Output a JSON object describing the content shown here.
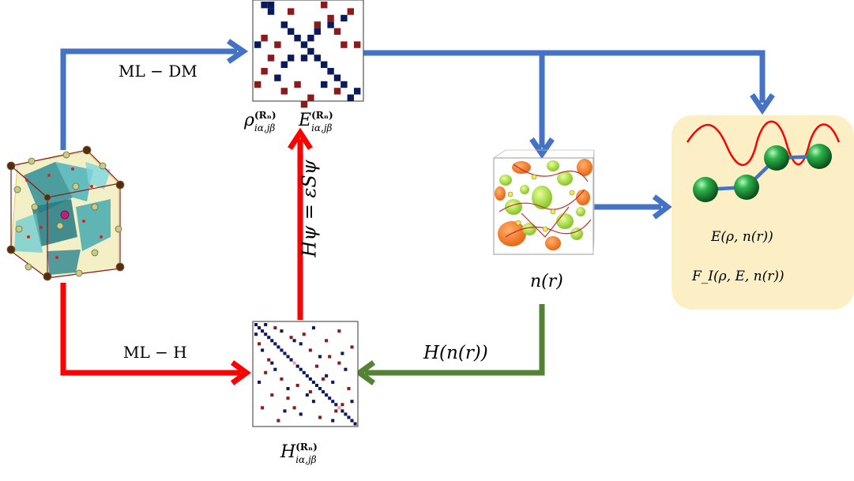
{
  "arrow_labels": {
    "ml_dm": "ML − DM",
    "ml_h": "ML − H",
    "eigen": "Hψ = εSψ",
    "h_of_n": "H(n(r))"
  },
  "matrix_labels": {
    "rho": "ρ",
    "e": "E",
    "h": "H",
    "sup": "(Rₙ)",
    "sub": "iα,jβ"
  },
  "density_label": "n(r)",
  "output_box": {
    "energy_label": "E(ρ, n(r))",
    "force_label": "F_I(ρ, E, n(r))",
    "bg_color": "#FCEFC6"
  },
  "colors": {
    "blue_arrow": "#4472C4",
    "red_arrow": "#FF0000",
    "green_arrow": "#548235",
    "matrix_navy": "#0B1A5B",
    "matrix_maroon": "#8B1A1A",
    "matrix_pink": "#F4A0A0"
  }
}
